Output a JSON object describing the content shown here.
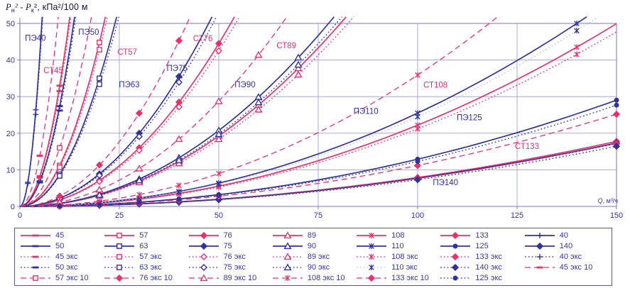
{
  "colors": {
    "pink": "#e8316b",
    "navy": "#32329b",
    "grid": "#a6a8d8",
    "axis": "#8e90c6",
    "text": "#33339b",
    "title": "#15153f",
    "lightnavy": "#b9c0de"
  },
  "axis_titles": {
    "pa": "P",
    "suba": "н",
    "mid": "² - P",
    "subb": "к",
    "tail": "², кПа²/100 м"
  },
  "chart_data": {
    "type": "line",
    "title": "",
    "xlabel": "Q, м³/ч",
    "ylabel": "Pн² - Pк², кПа²/100 м",
    "xlim": [
      0,
      150
    ],
    "ylim": [
      0,
      50
    ],
    "xticks": [
      0,
      25,
      50,
      75,
      100,
      125,
      150
    ],
    "yticks": [
      0,
      10,
      20,
      30,
      40,
      50
    ],
    "grid": true,
    "legend_position": "bottom",
    "legend_columns": 7,
    "curve_model": "P = k*Q^2 (quadratic through origin, clipped at ylim); k read from plot",
    "series": [
      {
        "name": "45",
        "color": "pink",
        "style": "solid",
        "marker": "dash",
        "k": 0.33,
        "mq": [
          5,
          10
        ]
      },
      {
        "name": "57",
        "color": "pink",
        "style": "solid",
        "marker": "square-open",
        "k": 0.112,
        "mq": [
          10,
          20
        ]
      },
      {
        "name": "76",
        "color": "pink",
        "style": "solid",
        "marker": "diamond-filled",
        "k": 0.0178,
        "mq": [
          10,
          20,
          30,
          40,
          50
        ]
      },
      {
        "name": "89",
        "color": "pink",
        "style": "solid",
        "marker": "triangle-open",
        "k": 0.0077,
        "mq": [
          10,
          20,
          30,
          40,
          50,
          60,
          70
        ]
      },
      {
        "name": "108",
        "color": "pink",
        "style": "solid",
        "marker": "asterisk",
        "k": 0.00222,
        "mq": [
          10,
          20,
          30,
          40,
          50,
          100,
          140
        ]
      },
      {
        "name": "133",
        "color": "pink",
        "style": "solid",
        "marker": "diamond-filled",
        "k": 0.00079,
        "mq": [
          10,
          20,
          30,
          40,
          50,
          100,
          150
        ]
      },
      {
        "name": "40",
        "color": "navy",
        "style": "solid",
        "marker": "plus",
        "k": 1.65,
        "mq": [
          2,
          4,
          6
        ]
      },
      {
        "name": "50",
        "color": "navy",
        "style": "solid",
        "marker": "dash",
        "k": 0.274,
        "mq": [
          5,
          10
        ]
      },
      {
        "name": "63",
        "color": "navy",
        "style": "solid",
        "marker": "square-open",
        "k": 0.0875,
        "mq": [
          10,
          20
        ]
      },
      {
        "name": "75",
        "color": "navy",
        "style": "solid",
        "marker": "diamond-filled",
        "k": 0.0222,
        "mq": [
          10,
          20,
          30,
          40
        ]
      },
      {
        "name": "90",
        "color": "navy",
        "style": "solid",
        "marker": "triangle-open",
        "k": 0.0083,
        "mq": [
          10,
          20,
          30,
          40,
          50,
          60,
          70
        ]
      },
      {
        "name": "110",
        "color": "navy",
        "style": "solid",
        "marker": "asterisk",
        "k": 0.00255,
        "mq": [
          10,
          20,
          30,
          40,
          50,
          100,
          140
        ]
      },
      {
        "name": "125",
        "color": "navy",
        "style": "solid",
        "marker": "circle-filled",
        "k": 0.00129,
        "mq": [
          10,
          20,
          30,
          40,
          50,
          100,
          150
        ]
      },
      {
        "name": "140",
        "color": "navy",
        "style": "solid",
        "marker": "diamond-filled",
        "k": 0.00077,
        "mq": [
          10,
          20,
          30,
          40,
          50,
          100,
          150
        ]
      },
      {
        "name": "45 экс",
        "color": "pink",
        "style": "dotted",
        "marker": "dash",
        "k": 0.315,
        "mq": [
          5,
          10
        ]
      },
      {
        "name": "57 экс",
        "color": "pink",
        "style": "dotted",
        "marker": "square-open",
        "k": 0.107,
        "mq": [
          10,
          20
        ]
      },
      {
        "name": "76 экс",
        "color": "pink",
        "style": "dotted",
        "marker": "diamond-open",
        "k": 0.017,
        "mq": [
          10,
          20,
          30,
          40,
          50
        ]
      },
      {
        "name": "89 экс",
        "color": "pink",
        "style": "dotted",
        "marker": "triangle-open",
        "k": 0.00735,
        "mq": [
          10,
          20,
          30,
          40,
          50,
          60,
          70
        ]
      },
      {
        "name": "108 экс",
        "color": "pink",
        "style": "dotted",
        "marker": "asterisk",
        "k": 0.00212,
        "mq": [
          10,
          20,
          30,
          40,
          50,
          100,
          140
        ]
      },
      {
        "name": "133 экс",
        "color": "pink",
        "style": "dotted",
        "marker": "diamond-filled",
        "k": 0.00076,
        "mq": [
          10,
          20,
          30,
          40,
          50,
          100,
          150
        ]
      },
      {
        "name": "40 экс",
        "color": "navy",
        "style": "dotted",
        "marker": "plus",
        "k": 1.57,
        "mq": [
          2,
          4,
          6
        ]
      },
      {
        "name": "50 экс",
        "color": "navy",
        "style": "dotted",
        "marker": "dash",
        "k": 0.262,
        "mq": [
          5,
          10
        ]
      },
      {
        "name": "63 экс",
        "color": "navy",
        "style": "dotted",
        "marker": "square-open",
        "k": 0.0835,
        "mq": [
          10,
          20
        ]
      },
      {
        "name": "75 экс",
        "color": "navy",
        "style": "dotted",
        "marker": "diamond-open",
        "k": 0.0212,
        "mq": [
          10,
          20,
          30,
          40
        ]
      },
      {
        "name": "90 экс",
        "color": "navy",
        "style": "dotted",
        "marker": "triangle-open",
        "k": 0.0079,
        "mq": [
          10,
          20,
          30,
          40,
          50,
          60,
          70
        ]
      },
      {
        "name": "110 экс",
        "color": "lightnavy",
        "mcolor": "navy",
        "style": "dotted",
        "marker": "asterisk",
        "k": 0.00245,
        "mq": [
          10,
          20,
          30,
          40,
          50,
          100,
          140
        ]
      },
      {
        "name": "140 экс",
        "color": "navy",
        "style": "dotted",
        "marker": "diamond-filled",
        "k": 0.00073,
        "mq": [
          10,
          20,
          30,
          40,
          50,
          100,
          150
        ]
      },
      {
        "name": "45 экс 10",
        "color": "pink",
        "style": "dashed",
        "marker": "dash",
        "k": 0.554,
        "mq": [
          5,
          10
        ]
      },
      {
        "name": "57 экс 10",
        "color": "pink",
        "style": "dashed",
        "marker": "square-open",
        "k": 0.16,
        "mq": [
          10,
          20
        ]
      },
      {
        "name": "76 экс 10",
        "color": "pink",
        "style": "dashed",
        "marker": "diamond-filled",
        "k": 0.0283,
        "mq": [
          10,
          20,
          30,
          40
        ]
      },
      {
        "name": "89 экс 10",
        "color": "pink",
        "style": "dashed",
        "marker": "triangle-open",
        "k": 0.0115,
        "mq": [
          10,
          20,
          30,
          40,
          50,
          60
        ]
      },
      {
        "name": "108 экс 10",
        "color": "pink",
        "style": "dashed",
        "marker": "asterisk",
        "k": 0.00359,
        "mq": [
          10,
          20,
          30,
          40,
          50,
          100
        ]
      },
      {
        "name": "133 экс 10",
        "color": "pink",
        "style": "dashed",
        "marker": "diamond-filled",
        "k": 0.00112,
        "mq": [
          10,
          20,
          30,
          40,
          50,
          100,
          150
        ]
      },
      {
        "name": "125 экс",
        "color": "navy",
        "style": "dotted",
        "marker": "circle-filled",
        "k": 0.00123,
        "mq": [
          10,
          20,
          30,
          40,
          50,
          100,
          150
        ]
      }
    ],
    "annotations": [
      {
        "text": "ПЭ40",
        "x": 3.9,
        "y": 45.3,
        "color": "navy"
      },
      {
        "text": "СТ45",
        "x": 8.4,
        "y": 36.4,
        "color": "pink"
      },
      {
        "text": "ПЭ50",
        "x": 17.3,
        "y": 46.9,
        "color": "navy"
      },
      {
        "text": "СТ57",
        "x": 27.0,
        "y": 41.5,
        "color": "pink"
      },
      {
        "text": "ПЭ63",
        "x": 27.5,
        "y": 32.6,
        "color": "navy"
      },
      {
        "text": "СТ76",
        "x": 46.0,
        "y": 45.2,
        "color": "pink"
      },
      {
        "text": "ПЭ75",
        "x": 39.5,
        "y": 37.0,
        "color": "navy"
      },
      {
        "text": "СТ89",
        "x": 67.0,
        "y": 43.2,
        "color": "pink"
      },
      {
        "text": "ПЭ90",
        "x": 56.6,
        "y": 32.6,
        "color": "navy"
      },
      {
        "text": "СТ108",
        "x": 104.5,
        "y": 32.5,
        "color": "pink"
      },
      {
        "text": "ПЭ110",
        "x": 87.0,
        "y": 25.3,
        "color": "navy"
      },
      {
        "text": "ПЭ125",
        "x": 113.0,
        "y": 23.5,
        "color": "navy"
      },
      {
        "text": "СТ133",
        "x": 127.5,
        "y": 15.7,
        "color": "pink"
      },
      {
        "text": "ПЭ140",
        "x": 107.0,
        "y": 5.8,
        "color": "navy"
      }
    ]
  }
}
